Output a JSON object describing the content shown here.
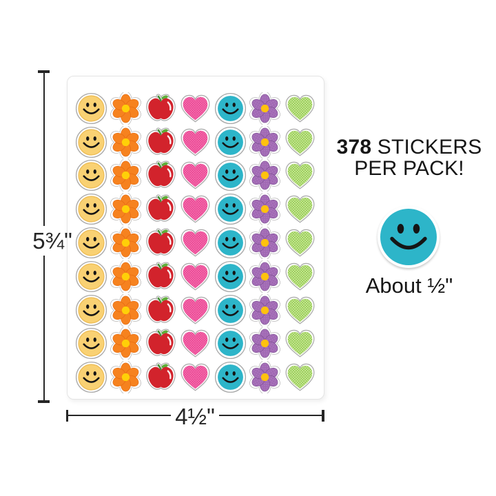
{
  "sheet": {
    "rows": 9,
    "columns": [
      {
        "name": "smiley-yellow",
        "symbol": "smiley-yellow"
      },
      {
        "name": "flower-orange",
        "symbol": "flower-orange"
      },
      {
        "name": "apple-red",
        "symbol": "apple"
      },
      {
        "name": "heart-pink",
        "symbol": "heart-pink"
      },
      {
        "name": "smiley-teal",
        "symbol": "smiley-teal"
      },
      {
        "name": "flower-purple",
        "symbol": "flower-purple"
      },
      {
        "name": "heart-green",
        "symbol": "heart-green"
      }
    ]
  },
  "dimensions": {
    "height_label": "5¾\"",
    "width_label": "4½\""
  },
  "pack_info": {
    "count": "378",
    "count_suffix": " STICKERS",
    "line2": "PER PACK!"
  },
  "badge": {
    "size_label": "About ½\""
  },
  "colors": {
    "outline": "#a9a9a9",
    "smiley_yellow": "#f9d173",
    "smiley_yellow_rim": "#eebd55",
    "smiley_teal": "#2db5c9",
    "face_features": "#151515",
    "flower_orange": "#f6821f",
    "flower_orange_edge": "#e0660d",
    "flower_orange_center": "#ffd008",
    "apple_red": "#d2232c",
    "apple_green": "#5fae3b",
    "apple_stem": "#3e8e2f",
    "heart_pink": "#f473ae",
    "heart_pink_dot": "#e62d87",
    "heart_green_light": "#cde79b",
    "heart_green": "#92cc52",
    "flower_purple": "#a169b4",
    "flower_purple_dot": "#b98fc9",
    "flower_purple_edge": "#7c4f92",
    "flower_purple_center": "#ffc20e",
    "dim_line": "#262626"
  }
}
